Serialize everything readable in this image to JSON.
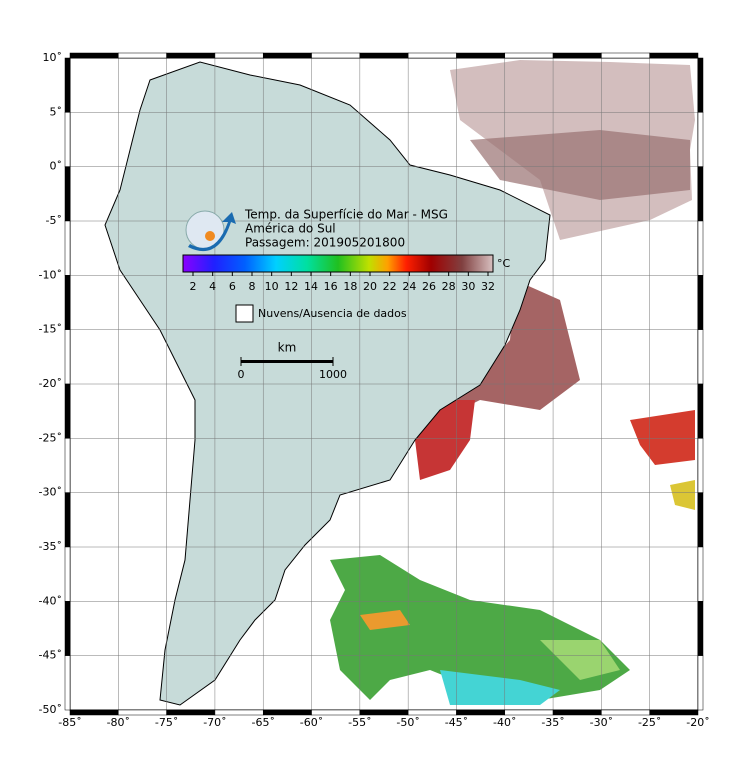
{
  "header": {
    "lines": [
      "Temp. da Superfície do Mar - MSG",
      "América do Sul",
      "Passagem: 201905201800"
    ]
  },
  "map": {
    "lonlim": [
      -85,
      -20
    ],
    "latlim": [
      -50,
      10
    ],
    "lon_ticks": [
      {
        "value": -85,
        "label": "-85˚"
      },
      {
        "value": -80,
        "label": "-80˚"
      },
      {
        "value": -75,
        "label": "-75˚"
      },
      {
        "value": -70,
        "label": "-70˚"
      },
      {
        "value": -65,
        "label": "-65˚"
      },
      {
        "value": -60,
        "label": "-60˚"
      },
      {
        "value": -55,
        "label": "-55˚"
      },
      {
        "value": -50,
        "label": "-50˚"
      },
      {
        "value": -45,
        "label": "-45˚"
      },
      {
        "value": -40,
        "label": "-40˚"
      },
      {
        "value": -35,
        "label": "-35˚"
      },
      {
        "value": -30,
        "label": "-30˚"
      },
      {
        "value": -25,
        "label": "-25˚"
      },
      {
        "value": -20,
        "label": "-20˚"
      }
    ],
    "lat_ticks": [
      {
        "value": 10,
        "label": "10˚"
      },
      {
        "value": 5,
        "label": "5˚"
      },
      {
        "value": 0,
        "label": "0˚"
      },
      {
        "value": -5,
        "label": "-5˚"
      },
      {
        "value": -10,
        "label": "-10˚"
      },
      {
        "value": -15,
        "label": "-15˚"
      },
      {
        "value": -20,
        "label": "-20˚"
      },
      {
        "value": -25,
        "label": "-25˚"
      },
      {
        "value": -30,
        "label": "-30˚"
      },
      {
        "value": -35,
        "label": "-35˚"
      },
      {
        "value": -40,
        "label": "-40˚"
      },
      {
        "value": -45,
        "label": "-45˚"
      },
      {
        "value": -50,
        "label": "-50˚"
      }
    ]
  },
  "colorbar": {
    "ticks": [
      2,
      4,
      6,
      8,
      10,
      12,
      14,
      16,
      18,
      20,
      22,
      24,
      26,
      28,
      30,
      32
    ],
    "unit": "°C"
  },
  "legend": {
    "label": "Nuvens/Ausencia de dados"
  },
  "scale_bar": {
    "unit": "km",
    "start": "0",
    "end": "1000"
  }
}
